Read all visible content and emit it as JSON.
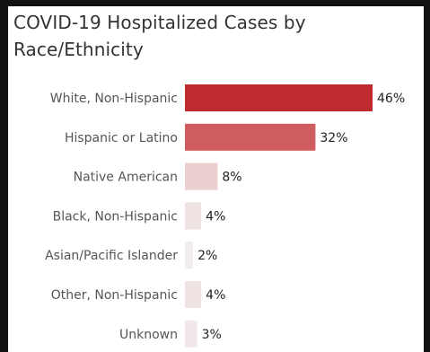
{
  "chart_data": {
    "type": "bar",
    "orientation": "horizontal",
    "title": "COVID-19 Hospitalized Cases by Race/Ethnicity",
    "categories": [
      "White, Non-Hispanic",
      "Hispanic or Latino",
      "Native American",
      "Black, Non-Hispanic",
      "Asian/Pacific Islander",
      "Other, Non-Hispanic",
      "Unknown"
    ],
    "values": [
      46,
      32,
      8,
      4,
      2,
      4,
      3
    ],
    "value_labels": [
      "46%",
      "32%",
      "8%",
      "4%",
      "2%",
      "4%",
      "3%"
    ],
    "unit": "%",
    "xlim": [
      0,
      50
    ],
    "grid": false,
    "colors": [
      "#bf2a2e",
      "#cf5d60",
      "#ead0d1",
      "#efe3e4",
      "#f3eced",
      "#efe3e4",
      "#f1e7e8"
    ]
  }
}
